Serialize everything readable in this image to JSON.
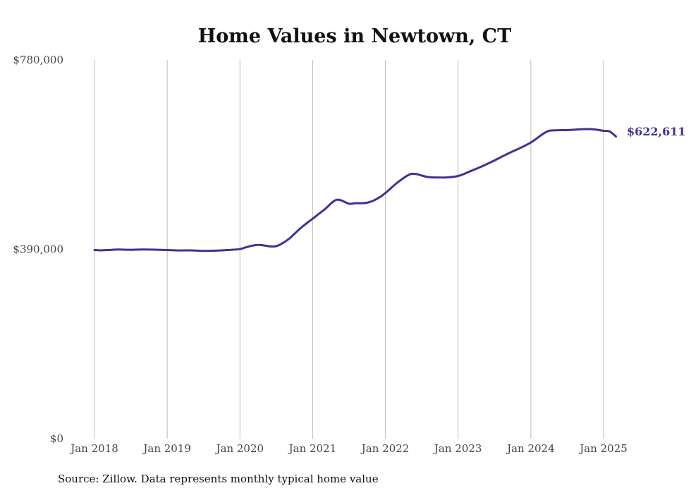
{
  "chart_data": {
    "type": "line",
    "title": "Home Values in Newtown, CT",
    "xlabel": "",
    "ylabel": "",
    "ylim": [
      0,
      780000
    ],
    "yticks": [
      {
        "value": 0,
        "label": "$0"
      },
      {
        "value": 390000,
        "label": "$390,000"
      },
      {
        "value": 780000,
        "label": "$780,000"
      }
    ],
    "xticks": [
      {
        "value": 2018.0,
        "label": "Jan 2018"
      },
      {
        "value": 2019.0,
        "label": "Jan 2019"
      },
      {
        "value": 2020.0,
        "label": "Jan 2020"
      },
      {
        "value": 2021.0,
        "label": "Jan 2021"
      },
      {
        "value": 2022.0,
        "label": "Jan 2022"
      },
      {
        "value": 2023.0,
        "label": "Jan 2023"
      },
      {
        "value": 2024.0,
        "label": "Jan 2024"
      },
      {
        "value": 2025.0,
        "label": "Jan 2025"
      }
    ],
    "xlim": [
      2018.0,
      2025.25
    ],
    "grid": "vertical",
    "series": [
      {
        "color": "#3a3591",
        "x": [
          2018.0,
          2018.08,
          2018.17,
          2018.33,
          2018.5,
          2018.67,
          2018.83,
          2019.0,
          2019.17,
          2019.33,
          2019.5,
          2019.67,
          2019.83,
          2020.0,
          2020.08,
          2020.17,
          2020.25,
          2020.33,
          2020.42,
          2020.5,
          2020.58,
          2020.67,
          2020.75,
          2020.83,
          2020.92,
          2021.0,
          2021.17,
          2021.33,
          2021.5,
          2021.58,
          2021.67,
          2021.75,
          2021.83,
          2021.92,
          2022.0,
          2022.17,
          2022.33,
          2022.42,
          2022.5,
          2022.58,
          2022.67,
          2022.75,
          2022.83,
          2023.0,
          2023.17,
          2023.33,
          2023.5,
          2023.67,
          2023.83,
          2024.0,
          2024.17,
          2024.25,
          2024.33,
          2024.42,
          2024.5,
          2024.67,
          2024.75,
          2024.83,
          2024.92,
          2025.0,
          2025.08,
          2025.17
        ],
        "y": [
          388500,
          388000,
          388500,
          389500,
          389200,
          389600,
          389300,
          388500,
          387700,
          387800,
          386800,
          387300,
          388500,
          390500,
          394000,
          397500,
          399000,
          398000,
          396000,
          396500,
          402000,
          411000,
          422000,
          433000,
          444000,
          453000,
          473000,
          492000,
          484000,
          485000,
          485000,
          486000,
          490000,
          497000,
          506000,
          528000,
          544000,
          545000,
          542000,
          539000,
          538000,
          538000,
          538000,
          541000,
          551000,
          561000,
          573000,
          586000,
          597000,
          610000,
          628000,
          634000,
          635000,
          635500,
          635500,
          637000,
          637500,
          637500,
          636000,
          634000,
          633000,
          622611
        ]
      }
    ],
    "annotations": [
      {
        "text": "$622,611",
        "color": "#3a3591"
      }
    ],
    "source": "Source: Zillow. Data represents monthly typical home value"
  }
}
